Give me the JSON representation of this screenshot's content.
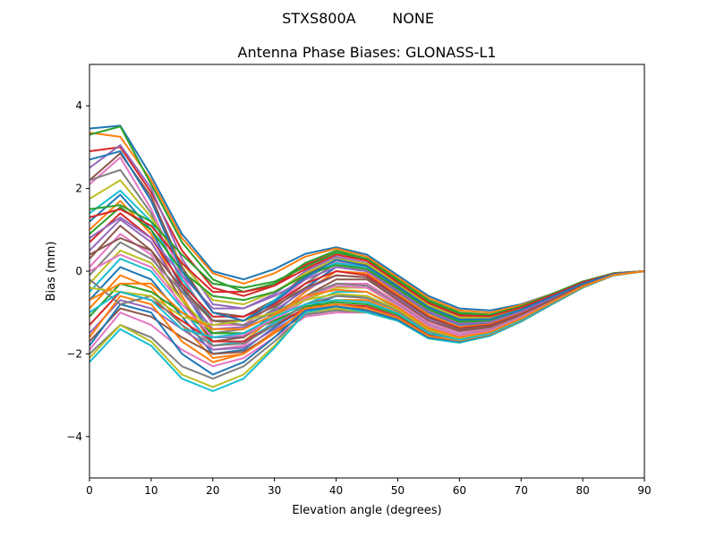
{
  "chart_data": {
    "type": "line",
    "suptitle": "STXS800A        NONE",
    "title": "Antenna Phase Biases: GLONASS-L1",
    "xlabel": "Elevation angle (degrees)",
    "ylabel": "Bias (mm)",
    "xlim": [
      0,
      90
    ],
    "ylim": [
      -5,
      5
    ],
    "xticks": [
      0,
      10,
      20,
      30,
      40,
      50,
      60,
      70,
      80,
      90
    ],
    "yticks": [
      -4,
      -2,
      0,
      2,
      4
    ],
    "grid": false,
    "legend": "none",
    "x": [
      0,
      5,
      10,
      15,
      20,
      25,
      30,
      35,
      40,
      45,
      50,
      55,
      60,
      65,
      70,
      75,
      80,
      85,
      90
    ],
    "colors": [
      "#1f77b4",
      "#ff7f0e",
      "#2ca02c",
      "#d62728",
      "#9467bd",
      "#8c564b",
      "#e377c2",
      "#7f7f7f",
      "#bcbd22",
      "#17becf"
    ],
    "series": [
      {
        "values": [
          3.45,
          3.52,
          2.3,
          0.9,
          0.0,
          -0.2,
          0.05,
          0.42,
          0.58,
          0.4,
          -0.1,
          -0.6,
          -0.9,
          -0.95,
          -0.8,
          -0.55,
          -0.25,
          -0.05,
          0.0
        ]
      },
      {
        "values": [
          3.35,
          3.25,
          2.2,
          0.8,
          -0.05,
          -0.3,
          -0.05,
          0.35,
          0.55,
          0.35,
          -0.15,
          -0.65,
          -0.95,
          -1.0,
          -0.82,
          -0.55,
          -0.25,
          -0.05,
          0.0
        ]
      },
      {
        "values": [
          3.3,
          3.5,
          2.1,
          0.7,
          -0.2,
          -0.5,
          -0.3,
          0.2,
          0.5,
          0.3,
          -0.2,
          -0.7,
          -1.0,
          -1.05,
          -0.85,
          -0.55,
          -0.25,
          -0.05,
          0.0
        ]
      },
      {
        "values": [
          2.9,
          3.0,
          1.9,
          0.5,
          -0.4,
          -0.6,
          -0.35,
          0.15,
          0.45,
          0.28,
          -0.25,
          -0.75,
          -1.05,
          -1.08,
          -0.88,
          -0.58,
          -0.27,
          -0.06,
          0.0
        ]
      },
      {
        "values": [
          2.5,
          3.05,
          2.0,
          0.3,
          -0.8,
          -0.9,
          -0.55,
          0.0,
          0.35,
          0.2,
          -0.3,
          -0.8,
          -1.1,
          -1.1,
          -0.9,
          -0.6,
          -0.28,
          -0.06,
          0.0
        ]
      },
      {
        "values": [
          2.2,
          2.85,
          1.8,
          0.1,
          -1.0,
          -1.1,
          -0.7,
          -0.1,
          0.3,
          0.15,
          -0.35,
          -0.85,
          -1.15,
          -1.15,
          -0.92,
          -0.62,
          -0.3,
          -0.07,
          0.0
        ]
      },
      {
        "values": [
          2.1,
          2.75,
          1.5,
          -0.1,
          -1.3,
          -1.3,
          -0.8,
          -0.2,
          0.25,
          0.1,
          -0.4,
          -0.9,
          -1.2,
          -1.18,
          -0.95,
          -0.63,
          -0.3,
          -0.07,
          0.0
        ]
      },
      {
        "values": [
          2.2,
          2.45,
          1.4,
          -0.3,
          -1.5,
          -1.4,
          -0.9,
          -0.3,
          0.2,
          0.05,
          -0.45,
          -0.95,
          -1.25,
          -1.2,
          -0.97,
          -0.64,
          -0.31,
          -0.08,
          0.0
        ]
      },
      {
        "values": [
          1.75,
          2.2,
          1.3,
          0.2,
          -0.7,
          -0.8,
          -0.5,
          -0.05,
          0.3,
          0.18,
          -0.3,
          -0.82,
          -1.12,
          -1.12,
          -0.9,
          -0.6,
          -0.28,
          -0.06,
          0.0
        ]
      },
      {
        "values": [
          1.4,
          1.95,
          1.2,
          -0.2,
          -1.2,
          -1.2,
          -0.7,
          -0.15,
          0.2,
          0.1,
          -0.38,
          -0.88,
          -1.18,
          -1.16,
          -0.93,
          -0.62,
          -0.29,
          -0.07,
          0.0
        ]
      },
      {
        "values": [
          1.2,
          1.85,
          1.0,
          -0.4,
          -1.6,
          -1.6,
          -1.0,
          -0.4,
          0.1,
          0.0,
          -0.5,
          -1.0,
          -1.3,
          -1.25,
          -1.0,
          -0.66,
          -0.32,
          -0.08,
          0.0
        ]
      },
      {
        "values": [
          1.0,
          1.7,
          0.9,
          -0.6,
          -1.8,
          -1.7,
          -1.1,
          -0.5,
          0.0,
          -0.05,
          -0.55,
          -1.05,
          -1.35,
          -1.28,
          -1.02,
          -0.67,
          -0.33,
          -0.08,
          0.0
        ]
      },
      {
        "values": [
          0.9,
          1.55,
          1.0,
          0.0,
          -0.6,
          -0.7,
          -0.5,
          -0.1,
          0.15,
          0.05,
          -0.42,
          -0.92,
          -1.22,
          -1.2,
          -0.96,
          -0.64,
          -0.3,
          -0.07,
          0.0
        ]
      },
      {
        "values": [
          0.7,
          1.4,
          0.8,
          -0.3,
          -1.1,
          -1.1,
          -0.8,
          -0.3,
          0.0,
          -0.1,
          -0.6,
          -1.1,
          -1.38,
          -1.3,
          -1.04,
          -0.68,
          -0.33,
          -0.08,
          0.0
        ]
      },
      {
        "values": [
          0.5,
          1.25,
          0.7,
          -0.5,
          -1.4,
          -1.35,
          -0.95,
          -0.45,
          -0.1,
          -0.15,
          -0.65,
          -1.15,
          -1.42,
          -1.33,
          -1.06,
          -0.7,
          -0.34,
          -0.09,
          0.0
        ]
      },
      {
        "values": [
          0.3,
          1.1,
          0.5,
          -0.7,
          -1.7,
          -1.6,
          -1.1,
          -0.6,
          -0.2,
          -0.2,
          -0.7,
          -1.2,
          -1.45,
          -1.36,
          -1.08,
          -0.71,
          -0.35,
          -0.09,
          0.0
        ]
      },
      {
        "values": [
          0.1,
          0.9,
          0.4,
          -0.9,
          -1.9,
          -1.8,
          -1.2,
          -0.7,
          -0.3,
          -0.3,
          -0.75,
          -1.25,
          -1.5,
          -1.4,
          -1.1,
          -0.72,
          -0.36,
          -0.09,
          0.0
        ]
      },
      {
        "values": [
          -0.1,
          0.7,
          0.3,
          -0.5,
          -1.2,
          -1.3,
          -1.0,
          -0.6,
          -0.3,
          -0.35,
          -0.8,
          -1.3,
          -1.55,
          -1.42,
          -1.12,
          -0.73,
          -0.36,
          -0.1,
          0.0
        ]
      },
      {
        "values": [
          -0.3,
          0.5,
          0.2,
          -0.7,
          -1.5,
          -1.5,
          -1.1,
          -0.7,
          -0.4,
          -0.4,
          -0.85,
          -1.35,
          -1.58,
          -1.45,
          -1.14,
          -0.74,
          -0.37,
          -0.1,
          0.0
        ]
      },
      {
        "values": [
          -0.5,
          0.3,
          0.0,
          -0.9,
          -1.8,
          -1.7,
          -1.25,
          -0.8,
          -0.5,
          -0.5,
          -0.9,
          -1.4,
          -1.6,
          -1.47,
          -1.15,
          -0.75,
          -0.37,
          -0.1,
          0.0
        ]
      },
      {
        "values": [
          -0.7,
          0.1,
          -0.2,
          -1.1,
          -2.0,
          -1.9,
          -1.35,
          -0.9,
          -0.6,
          -0.6,
          -0.95,
          -1.45,
          -1.62,
          -1.48,
          -1.16,
          -0.76,
          -0.38,
          -0.1,
          0.0
        ]
      },
      {
        "values": [
          -0.9,
          -0.1,
          -0.4,
          -1.3,
          -2.1,
          -2.0,
          -1.45,
          -0.95,
          -0.7,
          -0.7,
          -1.0,
          -1.5,
          -1.65,
          -1.5,
          -1.18,
          -0.77,
          -0.38,
          -0.1,
          0.0
        ]
      },
      {
        "values": [
          -1.1,
          -0.3,
          -0.5,
          -1.0,
          -1.5,
          -1.5,
          -1.2,
          -0.85,
          -0.75,
          -0.8,
          -1.05,
          -1.52,
          -1.66,
          -1.51,
          -1.18,
          -0.77,
          -0.38,
          -0.1,
          0.0
        ]
      },
      {
        "values": [
          -1.3,
          -0.5,
          -0.7,
          -1.2,
          -1.7,
          -1.7,
          -1.3,
          -0.9,
          -0.8,
          -0.85,
          -1.1,
          -1.55,
          -1.68,
          -1.52,
          -1.19,
          -0.78,
          -0.38,
          -0.1,
          0.0
        ]
      },
      {
        "values": [
          -1.5,
          -0.7,
          -0.9,
          -1.4,
          -1.9,
          -1.85,
          -1.4,
          -1.0,
          -0.9,
          -0.9,
          -1.12,
          -1.57,
          -1.7,
          -1.53,
          -1.2,
          -0.78,
          -0.39,
          -0.1,
          0.0
        ]
      },
      {
        "values": [
          -1.7,
          -0.9,
          -1.1,
          -1.6,
          -2.0,
          -1.95,
          -1.5,
          -1.05,
          -0.95,
          -0.95,
          -1.15,
          -1.58,
          -1.7,
          -1.54,
          -1.2,
          -0.79,
          -0.39,
          -0.1,
          0.0
        ]
      },
      {
        "values": [
          -1.9,
          -1.0,
          -1.3,
          -1.9,
          -2.3,
          -2.1,
          -1.6,
          -1.1,
          -1.0,
          -1.0,
          -1.18,
          -1.6,
          -1.72,
          -1.55,
          -1.21,
          -0.79,
          -0.39,
          -0.1,
          0.0
        ]
      },
      {
        "values": [
          -2.0,
          -1.3,
          -1.6,
          -2.3,
          -2.6,
          -2.3,
          -1.7,
          -1.05,
          -0.95,
          -1.0,
          -1.2,
          -1.62,
          -1.72,
          -1.55,
          -1.21,
          -0.79,
          -0.39,
          -0.1,
          0.0
        ]
      },
      {
        "values": [
          -2.1,
          -1.3,
          -1.7,
          -2.5,
          -2.8,
          -2.5,
          -1.8,
          -1.0,
          -0.9,
          -1.0,
          -1.2,
          -1.63,
          -1.73,
          -1.56,
          -1.22,
          -0.8,
          -0.4,
          -0.1,
          0.0
        ]
      },
      {
        "values": [
          -2.2,
          -1.4,
          -1.8,
          -2.6,
          -2.9,
          -2.6,
          -1.85,
          -1.0,
          -0.85,
          -1.0,
          -1.2,
          -1.63,
          -1.73,
          -1.56,
          -1.22,
          -0.8,
          -0.4,
          -0.1,
          0.0
        ]
      },
      {
        "values": [
          -1.8,
          -0.8,
          -1.0,
          -2.0,
          -2.5,
          -2.2,
          -1.6,
          -0.95,
          -0.85,
          -0.95,
          -1.17,
          -1.6,
          -1.7,
          -1.54,
          -1.2,
          -0.79,
          -0.39,
          -0.1,
          0.0
        ]
      },
      {
        "values": [
          -1.6,
          -0.6,
          -0.8,
          -1.7,
          -2.2,
          -2.0,
          -1.5,
          -0.9,
          -0.8,
          -0.9,
          -1.13,
          -1.57,
          -1.68,
          -1.53,
          -1.19,
          -0.78,
          -0.39,
          -0.1,
          0.0
        ]
      },
      {
        "values": [
          1.5,
          1.6,
          1.2,
          0.4,
          -0.3,
          -0.4,
          -0.25,
          0.1,
          0.45,
          0.3,
          -0.22,
          -0.72,
          -1.02,
          -1.06,
          -0.86,
          -0.57,
          -0.26,
          -0.05,
          0.0
        ]
      },
      {
        "values": [
          1.3,
          1.5,
          1.1,
          0.2,
          -0.5,
          -0.5,
          -0.35,
          0.05,
          0.4,
          0.25,
          -0.27,
          -0.77,
          -1.07,
          -1.09,
          -0.88,
          -0.58,
          -0.27,
          -0.06,
          0.0
        ]
      },
      {
        "values": [
          0.8,
          1.3,
          0.8,
          -0.1,
          -0.9,
          -0.9,
          -0.6,
          -0.2,
          0.1,
          0.0,
          -0.48,
          -0.98,
          -1.28,
          -1.23,
          -0.98,
          -0.65,
          -0.31,
          -0.07,
          0.0
        ]
      },
      {
        "values": [
          0.4,
          0.8,
          0.5,
          -0.4,
          -1.2,
          -1.2,
          -0.85,
          -0.4,
          -0.1,
          -0.15,
          -0.62,
          -1.12,
          -1.4,
          -1.32,
          -1.05,
          -0.69,
          -0.34,
          -0.08,
          0.0
        ]
      },
      {
        "values": [
          0.0,
          0.4,
          0.1,
          -0.8,
          -1.6,
          -1.55,
          -1.15,
          -0.65,
          -0.35,
          -0.4,
          -0.82,
          -1.32,
          -1.56,
          -1.44,
          -1.13,
          -0.74,
          -0.37,
          -0.09,
          0.0
        ]
      },
      {
        "values": [
          -0.2,
          -0.8,
          -0.6,
          -1.3,
          -1.8,
          -1.75,
          -1.3,
          -0.8,
          -0.6,
          -0.65,
          -0.95,
          -1.45,
          -1.64,
          -1.49,
          -1.17,
          -0.76,
          -0.38,
          -0.1,
          0.0
        ]
      },
      {
        "values": [
          -0.4,
          -0.5,
          -0.6,
          -1.1,
          -1.3,
          -1.2,
          -1.0,
          -0.7,
          -0.55,
          -0.6,
          -0.92,
          -1.42,
          -1.62,
          -1.48,
          -1.16,
          -0.76,
          -0.38,
          -0.1,
          0.0
        ]
      },
      {
        "values": [
          -1.0,
          -0.5,
          -0.7,
          -1.4,
          -1.6,
          -1.5,
          -1.1,
          -0.8,
          -0.7,
          -0.75,
          -1.02,
          -1.5,
          -1.66,
          -1.51,
          -1.18,
          -0.77,
          -0.38,
          -0.1,
          0.0
        ]
      },
      {
        "values": [
          2.7,
          2.9,
          1.7,
          0.0,
          -1.0,
          -1.2,
          -0.75,
          -0.15,
          0.28,
          0.12,
          -0.37,
          -0.87,
          -1.17,
          -1.16,
          -0.93,
          -0.62,
          -0.3,
          -0.07,
          0.0
        ]
      },
      {
        "values": [
          -0.7,
          -0.3,
          -0.3,
          -1.0,
          -1.4,
          -1.4,
          -1.05,
          -0.6,
          -0.45,
          -0.5,
          -0.88,
          -1.38,
          -1.6,
          -1.47,
          -1.15,
          -0.75,
          -0.37,
          -0.09,
          0.0
        ]
      }
    ]
  }
}
